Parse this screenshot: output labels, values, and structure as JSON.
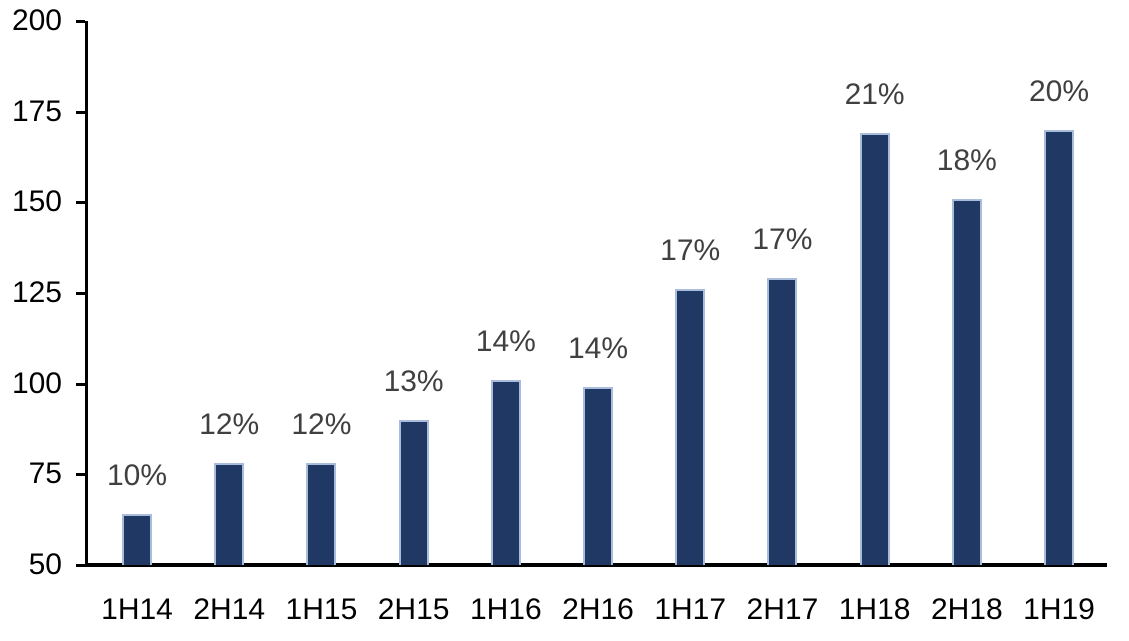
{
  "chart_data": {
    "type": "bar",
    "title": "",
    "xlabel": "",
    "ylabel": "",
    "categories": [
      "1H14",
      "2H14",
      "1H15",
      "2H15",
      "1H16",
      "2H16",
      "1H17",
      "2H17",
      "1H18",
      "2H18",
      "1H19"
    ],
    "values": [
      64,
      78,
      78,
      90,
      101,
      99,
      126,
      129,
      169,
      151,
      170
    ],
    "data_labels": [
      "10%",
      "12%",
      "12%",
      "13%",
      "14%",
      "14%",
      "17%",
      "17%",
      "21%",
      "18%",
      "20%"
    ],
    "ylim": [
      50,
      200
    ],
    "yticks": [
      50,
      75,
      100,
      125,
      150,
      175,
      200
    ],
    "grid": false,
    "legend": false,
    "colors": {
      "bar_fill": "#1F3864",
      "bar_border": "#A9BCDC",
      "data_label": "#404040",
      "axis": "#000000",
      "tick_label": "#000000",
      "background": "#FFFFFF"
    }
  }
}
